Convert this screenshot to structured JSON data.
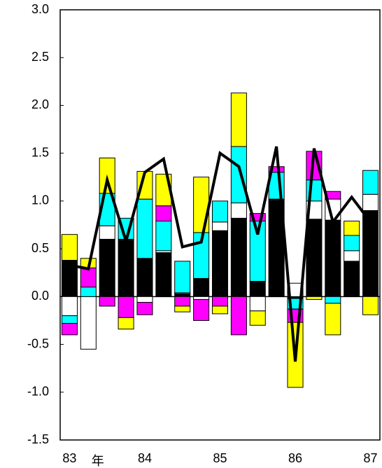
{
  "chart_data": {
    "type": "bar",
    "stacked": true,
    "xlabel": "年",
    "categories": [
      "83",
      null,
      null,
      null,
      "84",
      null,
      null,
      null,
      "85",
      null,
      null,
      null,
      "86",
      null,
      null,
      null,
      "87"
    ],
    "ylim": [
      -1.5,
      3.0
    ],
    "yticks": [
      {
        "value": -1.5,
        "label": "-1.5"
      },
      {
        "value": -1.0,
        "label": "-1.0"
      },
      {
        "value": -0.5,
        "label": "-0.5"
      },
      {
        "value": 0,
        "label": "0.0"
      },
      {
        "value": 0.5,
        "label": "0.5"
      },
      {
        "value": 1.0,
        "label": "1.0"
      },
      {
        "value": 1.5,
        "label": "1.5"
      },
      {
        "value": 2.0,
        "label": "2.0"
      },
      {
        "value": 2.5,
        "label": "2.5"
      },
      {
        "value": 3.0,
        "label": "3.0"
      }
    ],
    "grid": false,
    "series": [
      {
        "type": "bar",
        "color": "#000000",
        "values": [
          0.38,
          0,
          0.6,
          0.6,
          0.4,
          0.46,
          0.03,
          0.19,
          0.69,
          0.82,
          0.16,
          1.02,
          -0.02,
          0.81,
          0.8,
          0.37,
          0.9
        ]
      },
      {
        "type": "bar",
        "color": "#ffffff",
        "values": [
          -0.2,
          -0.55,
          0.14,
          0,
          -0.06,
          0.02,
          0.01,
          -0.03,
          0.09,
          0.16,
          -0.15,
          0,
          0.14,
          0.19,
          0.22,
          0.11,
          0.17
        ]
      },
      {
        "type": "bar",
        "color": "#00ffff",
        "values": [
          -0.08,
          0.1,
          0.34,
          0.22,
          0.62,
          0.31,
          0.33,
          0.48,
          0.22,
          0.59,
          0.63,
          0.28,
          -0.11,
          0.22,
          -0.07,
          0.16,
          0.25
        ]
      },
      {
        "type": "bar",
        "color": "#ff00ff",
        "values": [
          -0.12,
          0.2,
          -0.1,
          -0.22,
          -0.13,
          0.16,
          -0.1,
          -0.22,
          -0.1,
          -0.4,
          0.08,
          0.06,
          -0.14,
          0.3,
          0.08,
          0,
          0
        ]
      },
      {
        "type": "bar",
        "color": "#ffff00",
        "values": [
          0.27,
          0.1,
          0.37,
          -0.12,
          0.29,
          0.33,
          -0.06,
          0.58,
          -0.08,
          0.56,
          -0.15,
          0,
          -0.68,
          -0.03,
          -0.33,
          0.15,
          -0.19
        ]
      },
      {
        "type": "line",
        "color": "#000000",
        "values": [
          0.33,
          0.29,
          1.22,
          0.58,
          1.3,
          1.44,
          0.52,
          0.57,
          1.5,
          1.36,
          0.65,
          1.57,
          -0.68,
          1.55,
          0.78,
          1.04,
          0.78
        ]
      }
    ]
  }
}
